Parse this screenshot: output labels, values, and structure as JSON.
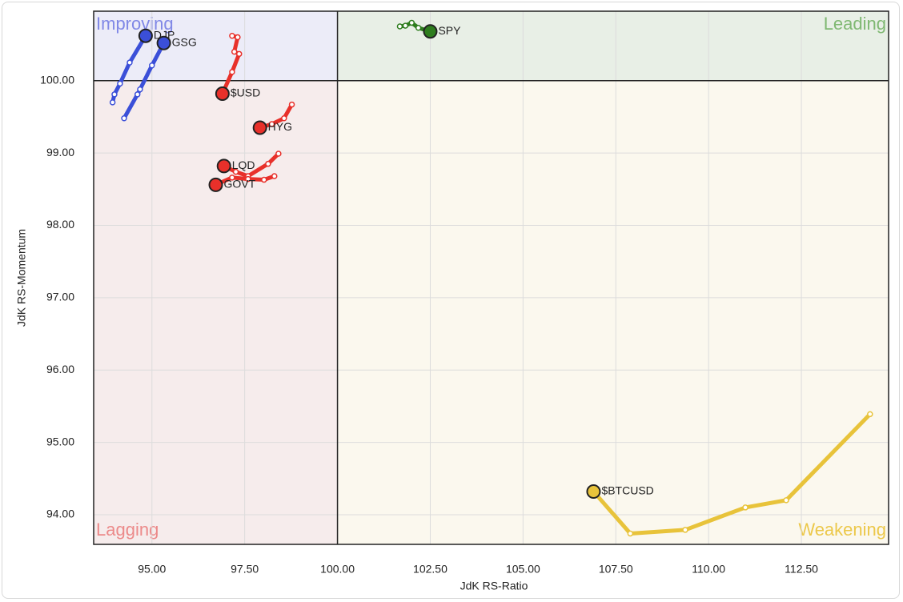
{
  "chart_data": {
    "type": "rrg",
    "x_label": "JdK RS-Ratio",
    "y_label": "JdK RS-Momentum",
    "xlim": [
      93.43,
      114.85
    ],
    "ylim": [
      93.59,
      100.96
    ],
    "xticks": [
      {
        "value": 95,
        "label": "95.00"
      },
      {
        "value": 97.5,
        "label": "97.50"
      },
      {
        "value": 100,
        "label": "100.00"
      },
      {
        "value": 102.5,
        "label": "102.50"
      },
      {
        "value": 105,
        "label": "105.00"
      },
      {
        "value": 107.5,
        "label": "107.50"
      },
      {
        "value": 110,
        "label": "110.00"
      },
      {
        "value": 112.5,
        "label": "112.50"
      }
    ],
    "yticks": [
      {
        "value": 94,
        "label": "94.00"
      },
      {
        "value": 95,
        "label": "95.00"
      },
      {
        "value": 96,
        "label": "96.00"
      },
      {
        "value": 97,
        "label": "97.00"
      },
      {
        "value": 98,
        "label": "98.00"
      },
      {
        "value": 99,
        "label": "99.00"
      },
      {
        "value": 100,
        "label": "100.00"
      }
    ],
    "grid": true,
    "center": [
      100,
      100
    ],
    "quadrants": [
      {
        "label": "Improving",
        "corner": "top-left",
        "color": "#8088e6",
        "fill": "#ececf8"
      },
      {
        "label": "Leading",
        "corner": "top-right",
        "color": "#7fb872",
        "fill": "#e8efe6"
      },
      {
        "label": "Lagging",
        "corner": "bottom-left",
        "color": "#ec8a8a",
        "fill": "#f6ecec"
      },
      {
        "label": "Weakening",
        "corner": "bottom-right",
        "color": "#ecc84a",
        "fill": "#fbf8ee"
      }
    ],
    "series": [
      {
        "name": "DJP",
        "color": "#3b4fd8",
        "x": [
          93.94,
          93.99,
          94.14,
          94.4,
          94.83
        ],
        "y": [
          99.7,
          99.81,
          99.96,
          100.25,
          100.62
        ]
      },
      {
        "name": "GSG",
        "color": "#3b4fd8",
        "x": [
          94.25,
          94.61,
          94.68,
          95.0,
          95.32
        ],
        "y": [
          99.48,
          99.81,
          99.88,
          100.21,
          100.52
        ]
      },
      {
        "name": "$USD",
        "color": "#e8302a",
        "x": [
          97.16,
          97.31,
          97.22,
          97.35,
          97.16,
          96.9
        ],
        "y": [
          100.62,
          100.6,
          100.4,
          100.37,
          100.12,
          99.82
        ]
      },
      {
        "name": "HYG",
        "color": "#e8302a",
        "x": [
          98.77,
          98.56,
          98.23,
          97.91
        ],
        "y": [
          99.67,
          99.48,
          99.4,
          99.35
        ]
      },
      {
        "name": "LQD",
        "color": "#e8302a",
        "x": [
          98.41,
          98.13,
          97.59,
          97.26,
          96.94
        ],
        "y": [
          98.99,
          98.85,
          98.68,
          98.74,
          98.82
        ]
      },
      {
        "name": "GOVT",
        "color": "#e8302a",
        "x": [
          98.3,
          98.02,
          97.59,
          97.16,
          96.72
        ],
        "y": [
          98.68,
          98.63,
          98.64,
          98.66,
          98.56
        ]
      },
      {
        "name": "SPY",
        "color": "#2e7d1e",
        "x": [
          101.68,
          101.83,
          102.0,
          102.18,
          102.5
        ],
        "y": [
          100.75,
          100.76,
          100.8,
          100.73,
          100.68
        ]
      },
      {
        "name": "$BTCUSD",
        "color": "#e8c33a",
        "x": [
          114.35,
          112.09,
          110.99,
          109.37,
          107.89,
          106.9
        ],
        "y": [
          95.39,
          94.2,
          94.1,
          93.79,
          93.74,
          94.32
        ]
      }
    ]
  }
}
